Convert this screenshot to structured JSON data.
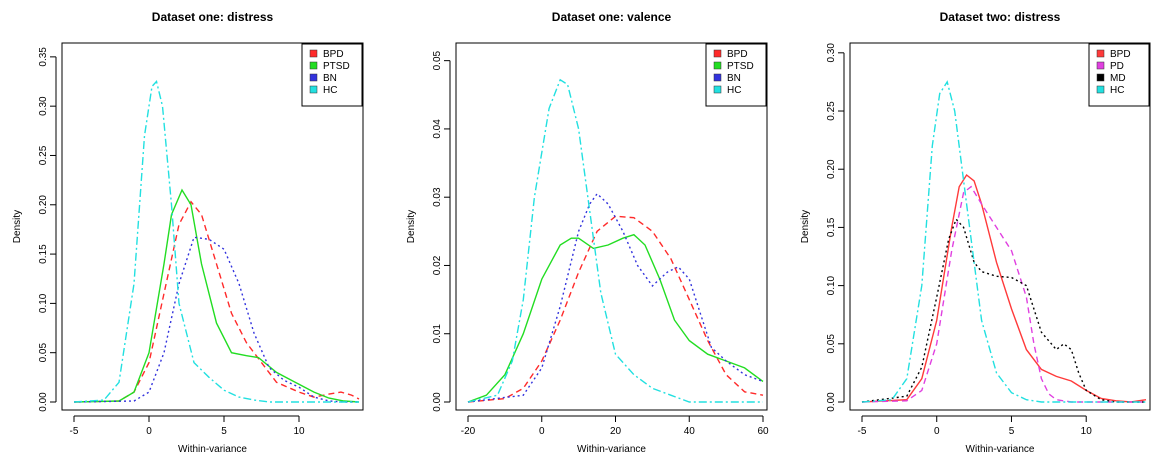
{
  "chart_data": [
    {
      "type": "line",
      "title": "Dataset one: distress",
      "xlabel": "Within-variance",
      "ylabel": "Density",
      "xlim": [
        -5,
        14
      ],
      "ylim": [
        0,
        0.36
      ],
      "xticks": [
        -5,
        0,
        5,
        10
      ],
      "yticks": [
        0.0,
        0.05,
        0.1,
        0.15,
        0.2,
        0.25,
        0.3,
        0.35
      ],
      "yticklabels": [
        "0.00",
        "0.05",
        "0.10",
        "0.15",
        "0.20",
        "0.25",
        "0.30",
        "0.35"
      ],
      "legend_position": "top-right",
      "series": [
        {
          "name": "BPD",
          "color": "#ff2a2a",
          "dash": "6,4",
          "x": [
            -5,
            -2,
            -1,
            0,
            1,
            2,
            2.8,
            3.5,
            4.5,
            5.5,
            6.5,
            7.5,
            8.5,
            10,
            11,
            12,
            12.8,
            13.5,
            14
          ],
          "y": [
            0,
            0.001,
            0.01,
            0.04,
            0.11,
            0.18,
            0.203,
            0.19,
            0.14,
            0.09,
            0.06,
            0.04,
            0.02,
            0.01,
            0.005,
            0.008,
            0.01,
            0.007,
            0.003
          ]
        },
        {
          "name": "PTSD",
          "color": "#22dd22",
          "dash": "",
          "x": [
            -5,
            -2,
            -1,
            0,
            1,
            1.5,
            2.2,
            2.8,
            3.5,
            4.5,
            5.5,
            6.5,
            7.3,
            8.5,
            10,
            11,
            12,
            13,
            14
          ],
          "y": [
            0,
            0.001,
            0.01,
            0.05,
            0.14,
            0.19,
            0.215,
            0.2,
            0.14,
            0.08,
            0.05,
            0.047,
            0.045,
            0.03,
            0.018,
            0.01,
            0.004,
            0.001,
            0
          ]
        },
        {
          "name": "BN",
          "color": "#3333dd",
          "dash": "2,3",
          "x": [
            -5,
            -1,
            0,
            1,
            2,
            3,
            4,
            5,
            6,
            7,
            8,
            9,
            10,
            11,
            12,
            13,
            14
          ],
          "y": [
            0,
            0.001,
            0.01,
            0.05,
            0.12,
            0.167,
            0.165,
            0.155,
            0.12,
            0.07,
            0.035,
            0.022,
            0.015,
            0.005,
            0.001,
            0,
            0
          ]
        },
        {
          "name": "HC",
          "color": "#22e0e0",
          "dash": "8,3,2,3",
          "x": [
            -5,
            -3,
            -2,
            -1,
            -0.3,
            0.2,
            0.5,
            0.9,
            1.5,
            2,
            3,
            4,
            5,
            6,
            7,
            8,
            10,
            12,
            14
          ],
          "y": [
            0,
            0.002,
            0.02,
            0.12,
            0.27,
            0.32,
            0.325,
            0.3,
            0.2,
            0.1,
            0.04,
            0.025,
            0.012,
            0.005,
            0.002,
            0,
            0,
            0,
            0
          ]
        }
      ]
    },
    {
      "type": "line",
      "title": "Dataset one: valence",
      "xlabel": "Within-variance",
      "ylabel": "Density",
      "xlim": [
        -20,
        60
      ],
      "ylim": [
        0,
        0.052
      ],
      "xticks": [
        -20,
        0,
        20,
        40,
        60
      ],
      "yticks": [
        0.0,
        0.01,
        0.02,
        0.03,
        0.04,
        0.05
      ],
      "yticklabels": [
        "0.00",
        "0.01",
        "0.02",
        "0.03",
        "0.04",
        "0.05"
      ],
      "legend_position": "top-right",
      "series": [
        {
          "name": "BPD",
          "color": "#ff2a2a",
          "dash": "6,4",
          "x": [
            -20,
            -10,
            -5,
            0,
            5,
            10,
            15,
            20,
            25,
            30,
            35,
            40,
            45,
            50,
            55,
            58,
            60
          ],
          "y": [
            0,
            0.0005,
            0.002,
            0.006,
            0.012,
            0.019,
            0.025,
            0.0272,
            0.027,
            0.025,
            0.021,
            0.015,
            0.009,
            0.004,
            0.0015,
            0.0012,
            0.001
          ]
        },
        {
          "name": "PTSD",
          "color": "#22dd22",
          "dash": "",
          "x": [
            -20,
            -15,
            -10,
            -5,
            0,
            5,
            8,
            10,
            14,
            18,
            22,
            25,
            28,
            32,
            36,
            40,
            45,
            50,
            55,
            60
          ],
          "y": [
            0,
            0.001,
            0.004,
            0.01,
            0.018,
            0.023,
            0.024,
            0.024,
            0.0225,
            0.023,
            0.024,
            0.0245,
            0.023,
            0.018,
            0.012,
            0.009,
            0.007,
            0.006,
            0.005,
            0.003
          ]
        },
        {
          "name": "BN",
          "color": "#3333dd",
          "dash": "2,3",
          "x": [
            -20,
            -5,
            0,
            5,
            10,
            13,
            15,
            18,
            22,
            26,
            30,
            34,
            37,
            40,
            43,
            46,
            50,
            55,
            60
          ],
          "y": [
            0,
            0.001,
            0.005,
            0.014,
            0.025,
            0.029,
            0.0305,
            0.029,
            0.025,
            0.02,
            0.017,
            0.019,
            0.0198,
            0.018,
            0.013,
            0.008,
            0.006,
            0.004,
            0.003
          ]
        },
        {
          "name": "HC",
          "color": "#22e0e0",
          "dash": "8,3,2,3",
          "x": [
            -20,
            -12,
            -8,
            -5,
            -2,
            2,
            5,
            7,
            10,
            13,
            16,
            20,
            25,
            30,
            35,
            40,
            45,
            50,
            55,
            60
          ],
          "y": [
            0,
            0.001,
            0.006,
            0.015,
            0.03,
            0.043,
            0.0472,
            0.0465,
            0.04,
            0.028,
            0.016,
            0.007,
            0.004,
            0.002,
            0.001,
            0,
            0,
            0,
            0,
            0
          ]
        }
      ]
    },
    {
      "type": "line",
      "title": "Dataset two: distress",
      "xlabel": "Within-variance",
      "ylabel": "Density",
      "xlim": [
        -5,
        14
      ],
      "ylim": [
        0,
        0.305
      ],
      "xticks": [
        -5,
        0,
        5,
        10
      ],
      "yticks": [
        0.0,
        0.05,
        0.1,
        0.15,
        0.2,
        0.25,
        0.3
      ],
      "yticklabels": [
        "0.00",
        "0.05",
        "0.10",
        "0.15",
        "0.20",
        "0.25",
        "0.30"
      ],
      "legend_position": "top-right",
      "series": [
        {
          "name": "BPD",
          "color": "#ff3a3a",
          "dash": "",
          "x": [
            -5,
            -2,
            -1,
            0,
            1,
            1.5,
            2,
            2.5,
            3,
            4,
            5,
            6,
            7,
            8,
            9,
            10,
            11,
            12,
            13,
            14
          ],
          "y": [
            0,
            0.002,
            0.02,
            0.07,
            0.15,
            0.185,
            0.195,
            0.19,
            0.17,
            0.12,
            0.08,
            0.045,
            0.028,
            0.022,
            0.018,
            0.01,
            0.003,
            0.001,
            0,
            0.002
          ]
        },
        {
          "name": "PD",
          "color": "#e040e0",
          "dash": "6,4",
          "x": [
            -5,
            -2,
            -1,
            0,
            1,
            1.8,
            2.3,
            3,
            4,
            5,
            6,
            6.5,
            7,
            7.5,
            8,
            9,
            10,
            12,
            14
          ],
          "y": [
            0,
            0.001,
            0.01,
            0.05,
            0.13,
            0.18,
            0.185,
            0.17,
            0.15,
            0.13,
            0.09,
            0.05,
            0.02,
            0.007,
            0.002,
            0,
            0,
            0,
            0
          ]
        },
        {
          "name": "MD",
          "color": "#000000",
          "dash": "2,3",
          "x": [
            -5,
            -2,
            -1,
            0,
            0.8,
            1.3,
            1.8,
            2.5,
            3,
            4,
            5,
            6,
            7,
            8,
            8.5,
            9,
            9.5,
            10,
            11,
            12,
            14
          ],
          "y": [
            0,
            0.005,
            0.03,
            0.09,
            0.14,
            0.157,
            0.15,
            0.12,
            0.112,
            0.108,
            0.107,
            0.1,
            0.06,
            0.045,
            0.05,
            0.045,
            0.025,
            0.01,
            0.002,
            0,
            0
          ]
        },
        {
          "name": "HC",
          "color": "#22e0e0",
          "dash": "8,3,2,3",
          "x": [
            -5,
            -3,
            -2,
            -1,
            -0.3,
            0.2,
            0.7,
            1.2,
            2,
            3,
            4,
            5,
            6,
            7,
            8,
            10,
            12,
            14
          ],
          "y": [
            0,
            0.002,
            0.02,
            0.1,
            0.22,
            0.265,
            0.275,
            0.25,
            0.17,
            0.07,
            0.025,
            0.008,
            0.002,
            0,
            0,
            0,
            0,
            0
          ]
        }
      ]
    }
  ]
}
